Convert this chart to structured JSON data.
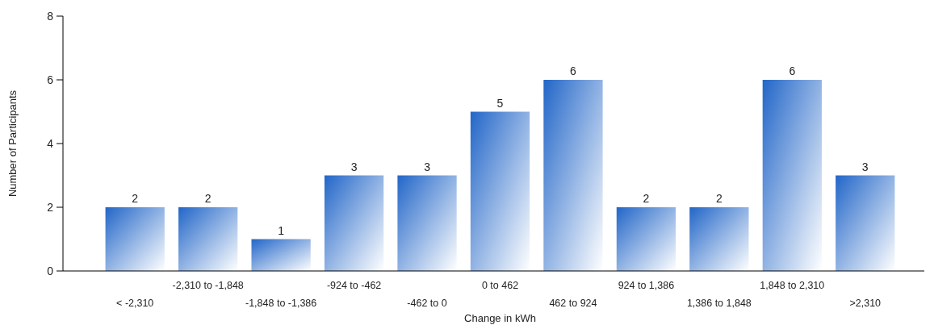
{
  "chart_data": {
    "type": "bar",
    "xlabel": "Change in kWh",
    "ylabel": "Number of Participants",
    "categories": [
      "< -2,310",
      "-2,310 to -1,848",
      "-1,848 to -1,386",
      "-924 to -462",
      "-462 to 0",
      "0 to 462",
      "462 to 924",
      "924 to 1,386",
      "1,386 to 1,848",
      "1,848 to 2,310",
      ">2,310"
    ],
    "values": [
      2,
      2,
      1,
      3,
      3,
      5,
      6,
      2,
      2,
      6,
      3
    ],
    "color": "#2266c8",
    "ylim": [
      0,
      8
    ],
    "yticks": [
      0,
      2,
      4,
      6,
      8
    ],
    "data_labels": true,
    "grid": false
  }
}
